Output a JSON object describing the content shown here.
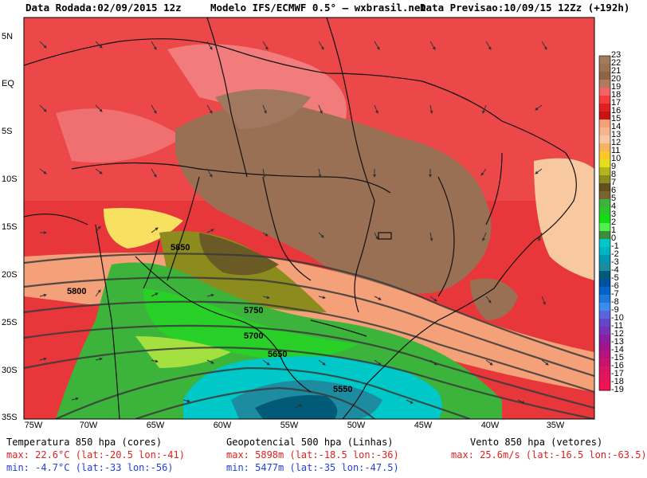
{
  "header": {
    "run_date": "Data Rodada:02/09/2015 12z",
    "model": "Modelo IFS/ECMWF 0.5° – wxbrasil.net",
    "forecast_date": "Data Previsao:10/09/15 12Zz (+192h)"
  },
  "axes": {
    "lat_labels": [
      "5N",
      "EQ",
      "5S",
      "10S",
      "15S",
      "20S",
      "25S",
      "30S",
      "35S"
    ],
    "lon_labels": [
      "75W",
      "70W",
      "65W",
      "60W",
      "55W",
      "50W",
      "45W",
      "40W",
      "35W"
    ]
  },
  "colorbar": {
    "labels": [
      "23",
      "22",
      "21",
      "20",
      "19",
      "18",
      "17",
      "16",
      "15",
      "14",
      "13",
      "12",
      "11",
      "10",
      "9",
      "8",
      "7",
      "6",
      "5",
      "4",
      "3",
      "2",
      "1",
      "0",
      "-1",
      "-2",
      "-3",
      "-4",
      "-5",
      "-6",
      "-7",
      "-8",
      "-9",
      "-10",
      "-11",
      "-12",
      "-13",
      "-14",
      "-15",
      "-16",
      "-17",
      "-18",
      "-19"
    ],
    "colors": [
      "#a07c5c",
      "#9a7450",
      "#8e6646",
      "#b07a5c",
      "#f46464",
      "#f43c3c",
      "#e02020",
      "#c81414",
      "#f4a078",
      "#f4b48c",
      "#f8c8a0",
      "#f4b464",
      "#fcc828",
      "#e8dc1e",
      "#b4b41e",
      "#8c8c1e",
      "#64501e",
      "#786432",
      "#3cb43c",
      "#28c828",
      "#14dc14",
      "#50f050",
      "#3c8c3c",
      "#00c8c8",
      "#00b4c8",
      "#0096b4",
      "#1e8ca0",
      "#005a78",
      "#0050a0",
      "#0064c8",
      "#1e78dc",
      "#3c8cf0",
      "#5a64dc",
      "#6446c8",
      "#7832b4",
      "#8c1ea0",
      "#a0148c",
      "#b4147c",
      "#c81470",
      "#dc1464",
      "#e8145a",
      "#f01450"
    ]
  },
  "contour_labels": [
    "5850",
    "5800",
    "5750",
    "5700",
    "5650",
    "5550"
  ],
  "footer": {
    "temp": {
      "title": "Temperatura 850 hpa (cores)",
      "max": "max: 22.6°C (lat:-20.5 lon:-41)",
      "min": "min: -4.7°C (lat:-33 lon:-56)"
    },
    "geo": {
      "title": "Geopotencial 500 hpa (Linhas)",
      "max": "max: 5898m (lat:-18.5 lon:-36)",
      "min": "min: 5477m (lat:-35 lon:-47.5)"
    },
    "wind": {
      "title": "Vento 850 hpa (vetores)",
      "max": "max: 25.6m/s (lat:-16.5 lon:-63.5)"
    }
  },
  "colors": {
    "warm": "#e83c3c",
    "hot": "#f06464",
    "brown": "#8e6646",
    "orange": "#f4a078",
    "green": "#28c828",
    "cyan": "#00c8c8"
  }
}
